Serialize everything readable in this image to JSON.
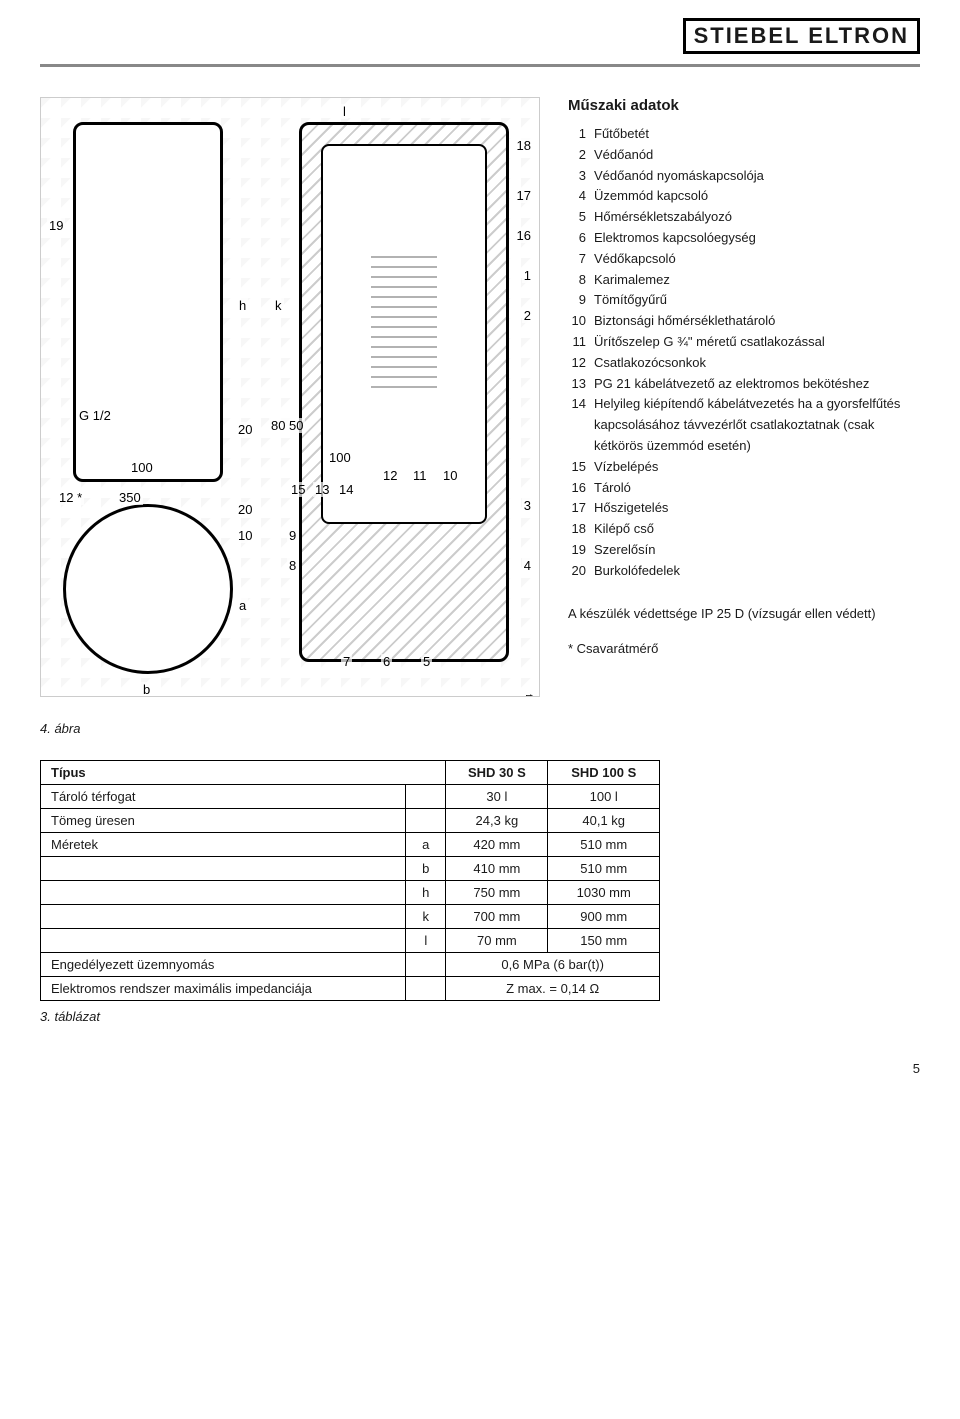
{
  "brand": "STIEBEL ELTRON",
  "section_title": "Műszaki adatok",
  "legend": [
    {
      "n": "1",
      "label": "Fűtőbetét"
    },
    {
      "n": "2",
      "label": "Védőanód"
    },
    {
      "n": "3",
      "label": "Védőanód nyomáskapcsolója"
    },
    {
      "n": "4",
      "label": "Üzemmód kapcsoló"
    },
    {
      "n": "5",
      "label": "Hőmérsékletszabályozó"
    },
    {
      "n": "6",
      "label": "Elektromos kapcsolóegység"
    },
    {
      "n": "7",
      "label": "Védőkapcsoló"
    },
    {
      "n": "8",
      "label": "Karimalemez"
    },
    {
      "n": "9",
      "label": "Tömítőgyűrű"
    },
    {
      "n": "10",
      "label": "Biztonsági hőmérséklethatároló"
    },
    {
      "n": "11",
      "label": "Ürítőszelep G ¾\" méretű csatlakozással"
    },
    {
      "n": "12",
      "label": "Csatlakozócsonkok"
    },
    {
      "n": "13",
      "label": "PG 21 kábelátvezető az elektromos bekötéshez"
    },
    {
      "n": "14",
      "label": "Helyileg kiépítendő kábelátvezetés ha a gyorsfelfűtés kapcsolásához távvezérlőt csatlakoztatnak (csak kétkörös üzemmód esetén)"
    },
    {
      "n": "15",
      "label": "Vízbelépés"
    },
    {
      "n": "16",
      "label": "Tároló"
    },
    {
      "n": "17",
      "label": "Hőszigetelés"
    },
    {
      "n": "18",
      "label": "Kilépő cső"
    },
    {
      "n": "19",
      "label": "Szerelősín"
    },
    {
      "n": "20",
      "label": "Burkolófedelek"
    }
  ],
  "ip_note": "A készülék védettsége IP 25 D (vízsugár ellen védett)",
  "footnote": "* Csavarátmérő",
  "fig_caption": "4. ábra",
  "table_caption": "3. táblázat",
  "diagram": {
    "ref_id": "6357.04",
    "front_dims": {
      "width_mm": "350",
      "mount_offset_mm": "100",
      "bore_note": "12 *",
      "conn": "G 1/2",
      "clearances": [
        "20",
        "20",
        "10"
      ],
      "axis_labels": [
        "a",
        "b",
        "h"
      ]
    },
    "section_dims": {
      "slot": "80",
      "slot2": "50",
      "pitch": "100",
      "axis_labels": [
        "k",
        "l"
      ]
    },
    "callouts_right": [
      "18",
      "17",
      "16",
      "1",
      "2",
      "3",
      "4"
    ],
    "callouts_bottom": [
      "15",
      "13",
      "14",
      "9",
      "8",
      "12",
      "11",
      "10",
      "7",
      "6",
      "5"
    ],
    "callouts_left": [
      "19"
    ]
  },
  "spec_table": {
    "header": [
      "Típus",
      "SHD 30 S",
      "SHD 100 S"
    ],
    "rows": [
      {
        "label": "Tároló térfogat",
        "sub": "",
        "c1": "30 l",
        "c2": "100 l"
      },
      {
        "label": "Tömeg üresen",
        "sub": "",
        "c1": "24,3 kg",
        "c2": "40,1 kg"
      },
      {
        "label": "Méretek",
        "sub": "a",
        "c1": "420 mm",
        "c2": "510 mm"
      },
      {
        "label": "",
        "sub": "b",
        "c1": "410 mm",
        "c2": "510 mm"
      },
      {
        "label": "",
        "sub": "h",
        "c1": "750 mm",
        "c2": "1030 mm"
      },
      {
        "label": "",
        "sub": "k",
        "c1": "700 mm",
        "c2": "900 mm"
      },
      {
        "label": "",
        "sub": "l",
        "c1": "70 mm",
        "c2": "150 mm"
      },
      {
        "label": "Engedélyezett üzemnyomás",
        "sub": "",
        "c1": "0,6 MPa (6 bar(t))",
        "span": true
      },
      {
        "label": "Elektromos rendszer maximális impedanciája",
        "sub": "",
        "c1": "Z max. = 0,14 Ω",
        "span": true
      }
    ]
  },
  "page_number": "5"
}
